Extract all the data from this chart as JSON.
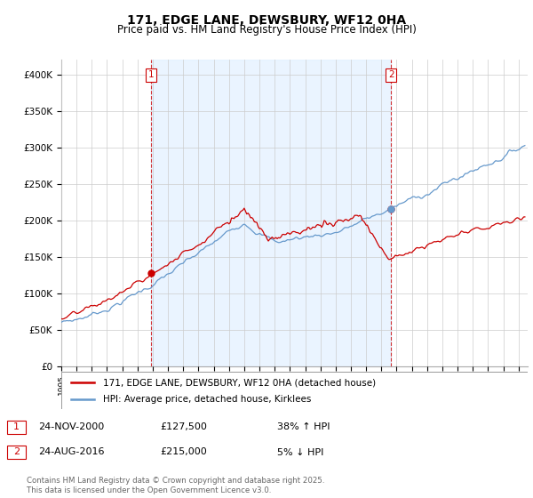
{
  "title": "171, EDGE LANE, DEWSBURY, WF12 0HA",
  "subtitle": "Price paid vs. HM Land Registry's House Price Index (HPI)",
  "ylim": [
    0,
    420000
  ],
  "yticks": [
    0,
    50000,
    100000,
    150000,
    200000,
    250000,
    300000,
    350000,
    400000
  ],
  "xlim_start": 1995.0,
  "xlim_end": 2025.6,
  "sale1_date_num": 2000.896,
  "sale1_price": 127500,
  "sale2_date_num": 2016.648,
  "sale2_price": 215000,
  "legend_line1": "171, EDGE LANE, DEWSBURY, WF12 0HA (detached house)",
  "legend_line2": "HPI: Average price, detached house, Kirklees",
  "footer": "Contains HM Land Registry data © Crown copyright and database right 2025.\nThis data is licensed under the Open Government Licence v3.0.",
  "line_color_red": "#cc0000",
  "line_color_blue": "#6699cc",
  "fill_color_blue": "#ddeeff",
  "grid_color": "#cccccc",
  "background": "#ffffff"
}
